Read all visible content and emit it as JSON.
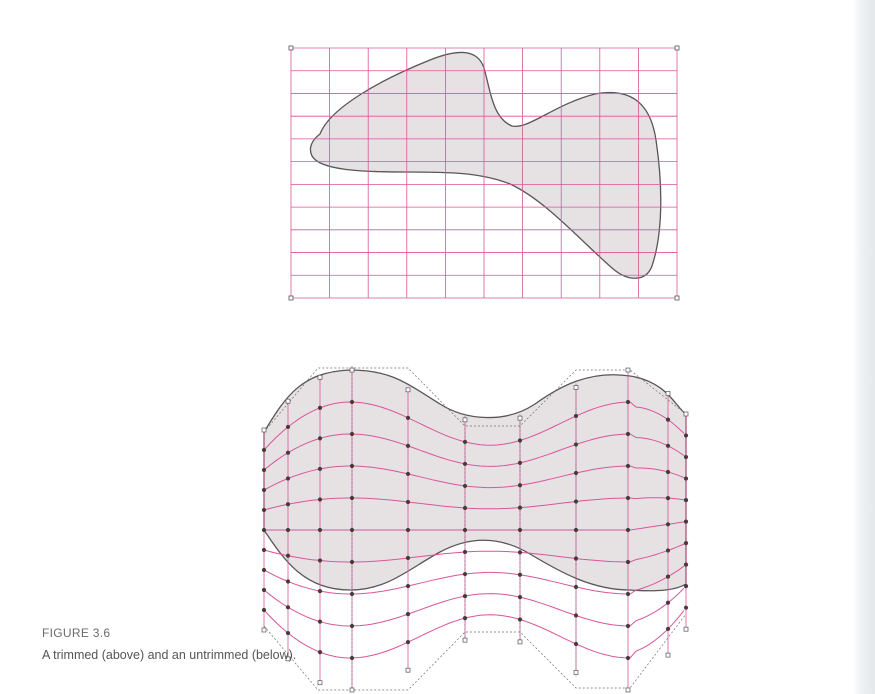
{
  "figure": {
    "label": "FIGURE 3.6",
    "caption": "A trimmed (above) and an untrimmed (below).",
    "colors": {
      "grid": "#d9559b",
      "shape_fill": "#e6e2e4",
      "outline": "#5a5558",
      "control_point": "#4a3b3b",
      "control_polygon": "#707070",
      "page_background": "#ffffff"
    },
    "icons": [
      "control-point-icon"
    ]
  }
}
